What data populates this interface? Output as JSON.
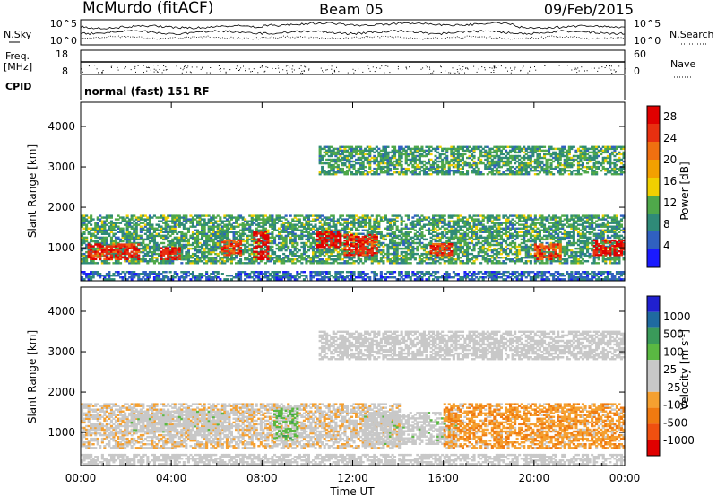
{
  "header": {
    "station": "McMurdo (fitACF)",
    "beam": "Beam 05",
    "date": "09/Feb/2015"
  },
  "noise_panel": {
    "left_label": "N.Sky",
    "left_ticks": [
      "10^5",
      "10^0"
    ],
    "right_label": "N.Search",
    "right_ticks": [
      "10^5",
      "10^0"
    ]
  },
  "freq_panel": {
    "left_label_1": "Freq.",
    "left_label_2": "[MHz]",
    "left_ticks": [
      "18",
      "8"
    ],
    "right_label": "Nave",
    "right_ticks": [
      "60",
      "0"
    ]
  },
  "cpid": {
    "label": "CPID",
    "text": "normal (fast) 151 RF"
  },
  "colors": {
    "power": [
      "#1a1aff",
      "#3060c0",
      "#2f8a78",
      "#4fa84a",
      "#f0d000",
      "#f3a000",
      "#f07010",
      "#e83010",
      "#e00000"
    ],
    "velocity": [
      "#e00000",
      "#f05010",
      "#f07a10",
      "#f5a030",
      "#c8c8c8",
      "#c8c8c8",
      "#5ab842",
      "#3a9a5a",
      "#1f6aa0",
      "#2020d0"
    ]
  },
  "chart_data": [
    {
      "type": "heatmap",
      "title": "",
      "xlabel": "Time UT",
      "ylabel": "Slant Range [km]",
      "xticks": [
        "00:00",
        "04:00",
        "08:00",
        "12:00",
        "16:00",
        "20:00",
        "00:00"
      ],
      "xlim": [
        0,
        24
      ],
      "yticks": [
        1000,
        2000,
        3000,
        4000
      ],
      "ylim": [
        180,
        4600
      ],
      "colorbar": {
        "label": "Power [dB]",
        "ticks": [
          4,
          8,
          12,
          16,
          20,
          24,
          28
        ],
        "range": [
          0,
          30
        ]
      },
      "echo_regions_km": [
        {
          "t_start": 0.0,
          "t_end": 24.0,
          "r_low": 600,
          "r_high": 1800,
          "value": 10
        },
        {
          "t_start": 0.3,
          "t_end": 2.6,
          "r_low": 700,
          "r_high": 1100,
          "value": 26
        },
        {
          "t_start": 3.5,
          "t_end": 4.3,
          "r_low": 700,
          "r_high": 1000,
          "value": 27
        },
        {
          "t_start": 6.2,
          "t_end": 7.0,
          "r_low": 800,
          "r_high": 1200,
          "value": 24
        },
        {
          "t_start": 7.6,
          "t_end": 8.2,
          "r_low": 700,
          "r_high": 1400,
          "value": 29
        },
        {
          "t_start": 10.4,
          "t_end": 11.4,
          "r_low": 1000,
          "r_high": 1400,
          "value": 29
        },
        {
          "t_start": 11.6,
          "t_end": 13.0,
          "r_low": 800,
          "r_high": 1300,
          "value": 26
        },
        {
          "t_start": 15.4,
          "t_end": 16.4,
          "r_low": 800,
          "r_high": 1100,
          "value": 25
        },
        {
          "t_start": 20.0,
          "t_end": 21.2,
          "r_low": 700,
          "r_high": 1100,
          "value": 24
        },
        {
          "t_start": 22.6,
          "t_end": 24.0,
          "r_low": 800,
          "r_high": 1200,
          "value": 27
        },
        {
          "t_start": 10.5,
          "t_end": 24.0,
          "r_low": 2800,
          "r_high": 3500,
          "value": 10
        },
        {
          "t_start": 0.0,
          "t_end": 24.0,
          "r_low": 200,
          "r_high": 420,
          "value": 6
        }
      ]
    },
    {
      "type": "heatmap",
      "title": "",
      "xlabel": "Time UT",
      "ylabel": "Slant Range [km]",
      "xticks": [
        "00:00",
        "04:00",
        "08:00",
        "12:00",
        "16:00",
        "20:00",
        "00:00"
      ],
      "xlim": [
        0,
        24
      ],
      "yticks": [
        1000,
        2000,
        3000,
        4000
      ],
      "ylim": [
        180,
        4600
      ],
      "colorbar": {
        "label": "Velocity [m s^-1]",
        "ticks": [
          1000,
          500,
          100,
          25,
          -25,
          -100,
          -500,
          -1000
        ],
        "range": [
          -1200,
          1200
        ]
      },
      "echo_regions_km": [
        {
          "t_start": 0.0,
          "t_end": 14.0,
          "r_low": 600,
          "r_high": 1700,
          "value": -150
        },
        {
          "t_start": 2.0,
          "t_end": 6.5,
          "r_low": 1000,
          "r_high": 1500,
          "value": 60
        },
        {
          "t_start": 8.5,
          "t_end": 9.5,
          "r_low": 800,
          "r_high": 1600,
          "value": 300
        },
        {
          "t_start": 12.5,
          "t_end": 16.5,
          "r_low": 700,
          "r_high": 1500,
          "value": 60
        },
        {
          "t_start": 16.0,
          "t_end": 24.0,
          "r_low": 600,
          "r_high": 1700,
          "value": -400
        },
        {
          "t_start": 10.5,
          "t_end": 24.0,
          "r_low": 2800,
          "r_high": 3500,
          "value": 0
        },
        {
          "t_start": 0.0,
          "t_end": 24.0,
          "r_low": 200,
          "r_high": 450,
          "value": 0
        }
      ]
    }
  ]
}
